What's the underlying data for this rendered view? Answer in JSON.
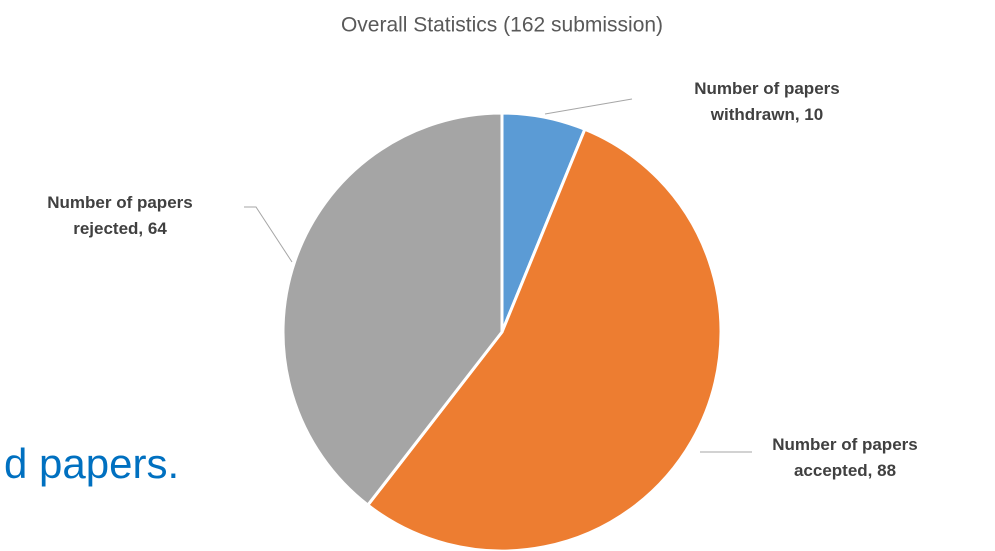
{
  "chart_data": {
    "type": "pie",
    "title": "Overall Statistics (162 submission)",
    "categories": [
      "Number of papers withdrawn",
      "Number of papers accepted",
      "Number of papers rejected"
    ],
    "values": [
      10,
      88,
      64
    ],
    "value_labels": [
      "Number of papers withdrawn, 10",
      "Number of papers accepted, 88",
      "Number of papers rejected, 64"
    ],
    "colors": [
      "#5b9bd5",
      "#ed7d31",
      "#a5a5a5"
    ]
  },
  "slide_text": "d papers."
}
